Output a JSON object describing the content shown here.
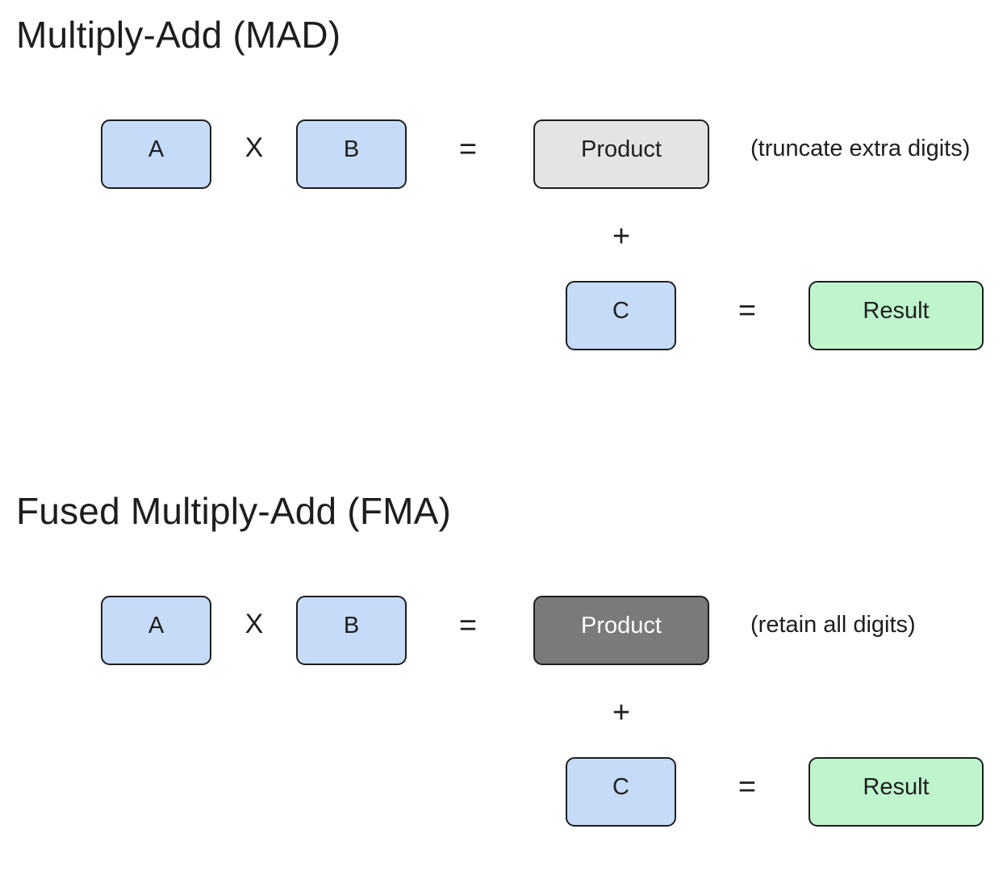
{
  "mad": {
    "title": "Multiply-Add (MAD)",
    "operand_a": "A",
    "times": "X",
    "operand_b": "B",
    "equals_1": "=",
    "product": "Product",
    "note": "(truncate extra digits)",
    "plus": "+",
    "operand_c": "C",
    "equals_2": "=",
    "result": "Result"
  },
  "fma": {
    "title": "Fused Multiply-Add (FMA)",
    "operand_a": "A",
    "times": "X",
    "operand_b": "B",
    "equals_1": "=",
    "product": "Product",
    "note": "(retain all digits)",
    "plus": "+",
    "operand_c": "C",
    "equals_2": "=",
    "result": "Result"
  },
  "colors": {
    "input_fill": "#c5dbf8",
    "mad_product_fill": "#e4e4e4",
    "fma_product_fill": "#7a7a7a",
    "result_fill": "#bff5cd",
    "stroke": "#1e1e1e"
  }
}
